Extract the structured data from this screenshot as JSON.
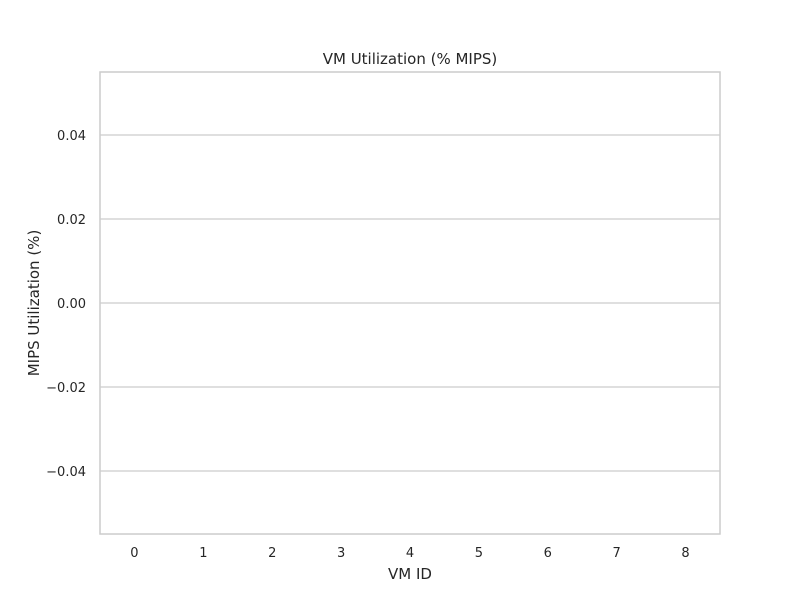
{
  "chart_data": {
    "type": "bar",
    "title": "VM Utilization (% MIPS)",
    "xlabel": "VM ID",
    "ylabel": "MIPS Utilization (%)",
    "categories": [
      "0",
      "1",
      "2",
      "3",
      "4",
      "5",
      "6",
      "7",
      "8"
    ],
    "values": [
      0,
      0,
      0,
      0,
      0,
      0,
      0,
      0,
      0
    ],
    "ylim": [
      -0.055,
      0.055
    ],
    "yticks": [
      0.04,
      0.02,
      0.0,
      -0.02,
      -0.04
    ],
    "ytick_labels": [
      "0.04",
      "0.02",
      "0.00",
      "−0.02",
      "−0.04"
    ],
    "grid": true,
    "legend": "none",
    "colors": {
      "grid": "#cccccc",
      "frame": "#cccccc",
      "text": "#262626",
      "background": "#ffffff"
    }
  }
}
